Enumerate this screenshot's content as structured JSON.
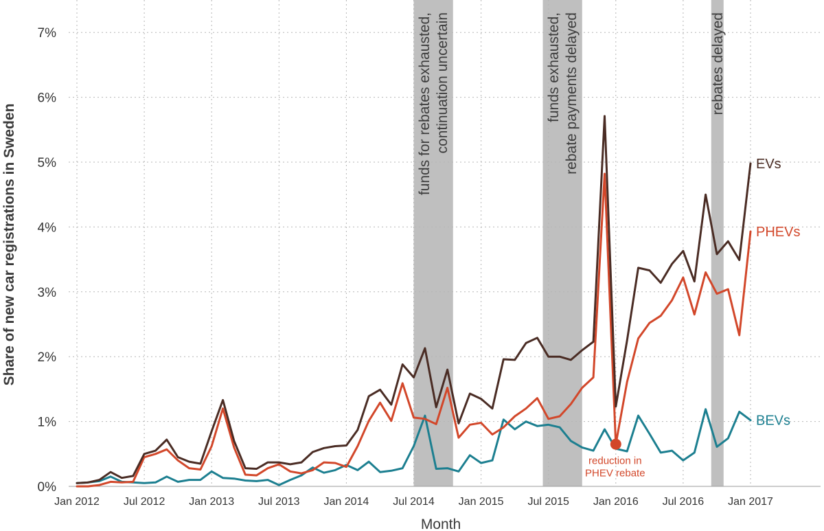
{
  "chart_data": {
    "type": "line",
    "xlabel": "Month",
    "ylabel": "Share of new car registrations in Sweden",
    "ylim": [
      0,
      7.5
    ],
    "yticks": [
      0,
      1,
      2,
      3,
      4,
      5,
      6,
      7
    ],
    "ytick_labels": [
      "0%",
      "1%",
      "2%",
      "3%",
      "4%",
      "5%",
      "6%",
      "7%"
    ],
    "x_start": "2012-01",
    "xticks": [
      {
        "label": "Jan 2012",
        "month": "2012-01"
      },
      {
        "label": "Jul 2012",
        "month": "2012-07"
      },
      {
        "label": "Jan 2013",
        "month": "2013-01"
      },
      {
        "label": "Jul 2013",
        "month": "2013-07"
      },
      {
        "label": "Jan 2014",
        "month": "2014-01"
      },
      {
        "label": "Jul 2014",
        "month": "2014-07"
      },
      {
        "label": "Jan 2015",
        "month": "2015-01"
      },
      {
        "label": "Jul 2015",
        "month": "2015-07"
      },
      {
        "label": "Jan 2016",
        "month": "2016-01"
      },
      {
        "label": "Jul 2016",
        "month": "2016-07"
      },
      {
        "label": "Jan 2017",
        "month": "2017-01"
      }
    ],
    "grid": true,
    "series": [
      {
        "name": "EVs",
        "color": "#4a2c24",
        "values": [
          0.05,
          0.06,
          0.1,
          0.22,
          0.13,
          0.16,
          0.5,
          0.55,
          0.72,
          0.45,
          0.38,
          0.35,
          0.85,
          1.33,
          0.7,
          0.28,
          0.27,
          0.37,
          0.37,
          0.34,
          0.37,
          0.53,
          0.59,
          0.62,
          0.63,
          0.87,
          1.39,
          1.49,
          1.26,
          1.88,
          1.68,
          2.13,
          1.22,
          1.8,
          0.97,
          1.43,
          1.35,
          1.2,
          1.96,
          1.95,
          2.21,
          2.29,
          2.0,
          2.0,
          1.95,
          2.1,
          2.23,
          5.71,
          1.23,
          2.25,
          3.37,
          3.33,
          3.14,
          3.43,
          3.63,
          3.16,
          4.5,
          3.58,
          3.78,
          3.49,
          4.98
        ]
      },
      {
        "name": "PHEVs",
        "color": "#d2472a",
        "values": [
          0.0,
          0.0,
          0.02,
          0.07,
          0.06,
          0.07,
          0.45,
          0.5,
          0.57,
          0.4,
          0.28,
          0.26,
          0.62,
          1.2,
          0.6,
          0.18,
          0.17,
          0.28,
          0.34,
          0.23,
          0.2,
          0.25,
          0.37,
          0.36,
          0.3,
          0.62,
          1.01,
          1.29,
          1.01,
          1.59,
          1.06,
          1.04,
          0.96,
          1.52,
          0.75,
          0.95,
          0.98,
          0.8,
          0.91,
          1.08,
          1.2,
          1.36,
          1.04,
          1.08,
          1.27,
          1.52,
          1.68,
          4.82,
          0.65,
          1.61,
          2.28,
          2.52,
          2.63,
          2.87,
          3.22,
          2.65,
          3.3,
          2.97,
          3.04,
          2.33,
          3.93
        ]
      },
      {
        "name": "BEVs",
        "color": "#1c7f90",
        "values": [
          0.05,
          0.06,
          0.08,
          0.15,
          0.07,
          0.06,
          0.05,
          0.06,
          0.15,
          0.07,
          0.1,
          0.1,
          0.23,
          0.13,
          0.12,
          0.09,
          0.08,
          0.1,
          0.02,
          0.1,
          0.17,
          0.29,
          0.21,
          0.25,
          0.33,
          0.25,
          0.38,
          0.22,
          0.24,
          0.28,
          0.62,
          1.09,
          0.27,
          0.28,
          0.23,
          0.48,
          0.36,
          0.4,
          1.03,
          0.88,
          1.0,
          0.93,
          0.95,
          0.91,
          0.7,
          0.6,
          0.55,
          0.88,
          0.58,
          0.54,
          1.09,
          0.81,
          0.52,
          0.55,
          0.4,
          0.52,
          1.19,
          0.61,
          0.74,
          1.15,
          1.02
        ]
      }
    ],
    "shaded_periods": [
      {
        "start": 30.0,
        "end": 33.5,
        "label_lines": [
          "funds for rebates exhausted,",
          "continuation uncertain"
        ]
      },
      {
        "start": 41.5,
        "end": 45.0,
        "label_lines": [
          "funds exhausted,",
          "rebate payments delayed"
        ]
      },
      {
        "start": 56.5,
        "end": 57.6,
        "label_lines": [
          "rebates delayed"
        ]
      }
    ],
    "series_labels": [
      {
        "text": "EVs",
        "color": "#4a2c24"
      },
      {
        "text": "PHEVs",
        "color": "#d2472a"
      },
      {
        "text": "BEVs",
        "color": "#1c7f90"
      }
    ],
    "annotation": {
      "month_index": 48,
      "value": 0.65,
      "lines": [
        "reduction in",
        "PHEV rebate"
      ],
      "color": "#d2472a"
    },
    "shade_color": "#bfbfbf"
  }
}
